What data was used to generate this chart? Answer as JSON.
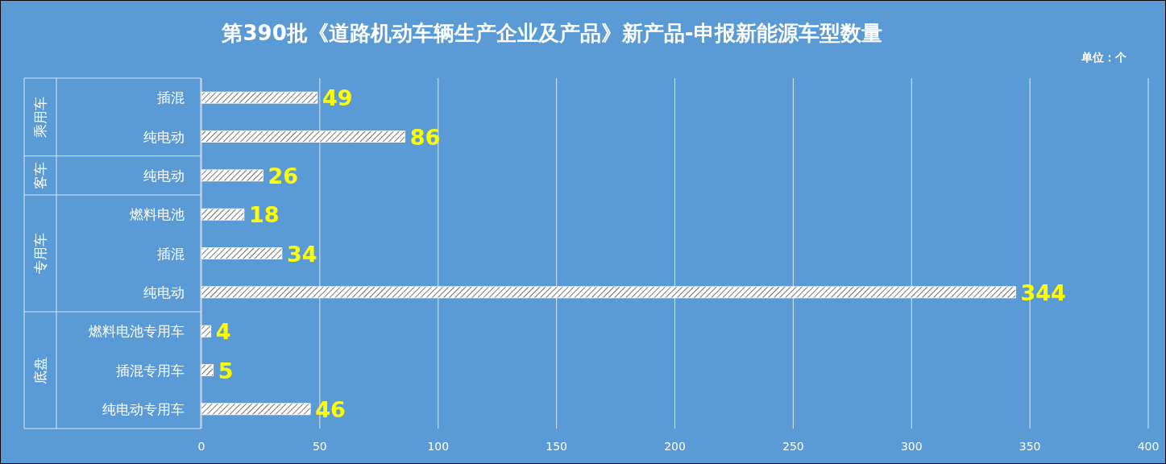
{
  "chart_data": {
    "type": "bar",
    "orientation": "horizontal",
    "title": "第390批《道路机动车辆生产企业及产品》新产品-申报新能源车型数量",
    "categories": [
      "插混",
      "纯电动",
      "纯电动",
      "燃料电池",
      "插混",
      "纯电动",
      "燃料电池专用车",
      "插混专用车",
      "纯电动专用车"
    ],
    "values": [
      49,
      86,
      26,
      18,
      34,
      344,
      4,
      5,
      46
    ],
    "color": "#ffffff",
    "data_labels": true,
    "xlim": [
      0,
      400
    ],
    "xticks": [
      0,
      50,
      100,
      150,
      200,
      250,
      300,
      350,
      400
    ],
    "grid": "x",
    "annotations": [
      "单位：个",
      "乘用车",
      "客车",
      "专用车",
      "底盘"
    ]
  }
}
